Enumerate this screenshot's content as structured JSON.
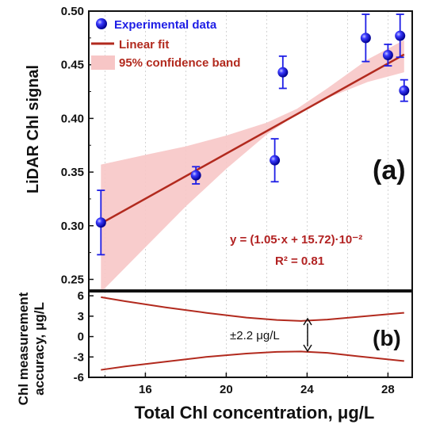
{
  "colors": {
    "data": "#1e1ee6",
    "fit": "#b22a1e",
    "band": "#f7c6c6",
    "grid": "#c8c8c8",
    "text": "#111111"
  },
  "chart_data": [
    {
      "type": "scatter",
      "panel_label": "(a)",
      "ylabel": "LiDAR Chl signal",
      "xlim": [
        13.2,
        29.2
      ],
      "ylim": [
        0.24,
        0.5
      ],
      "yticks": [
        0.25,
        0.3,
        0.35,
        0.4,
        0.45,
        0.5
      ],
      "ytick_labels": [
        "0.25",
        "0.30",
        "0.35",
        "0.40",
        "0.45",
        "0.50"
      ],
      "grid": "vertical dotted",
      "legend_position": "top-left",
      "legend": {
        "data_label": "Experimental data",
        "fit_label": "Linear fit",
        "band_label": "95% confidence band"
      },
      "series": [
        {
          "name": "Experimental data",
          "x": [
            13.8,
            18.5,
            22.4,
            22.8,
            26.9,
            28.0,
            28.6,
            28.8
          ],
          "y": [
            0.303,
            0.347,
            0.361,
            0.443,
            0.475,
            0.459,
            0.477,
            0.426
          ],
          "yerr": [
            0.03,
            0.008,
            0.02,
            0.015,
            0.022,
            0.01,
            0.02,
            0.01
          ]
        }
      ],
      "fit": {
        "name": "Linear fit",
        "slope": 0.0105,
        "intercept": 0.1572,
        "x_range": [
          13.8,
          28.8
        ],
        "equation": "y = (1.05·x + 15.72)·10⁻²",
        "r2": "R² = 0.81"
      },
      "confidence_band": {
        "name": "95% confidence band",
        "x": [
          13.8,
          16,
          18,
          20,
          22,
          23.5,
          25,
          27,
          28.8
        ],
        "lower": [
          0.238,
          0.28,
          0.318,
          0.353,
          0.385,
          0.404,
          0.419,
          0.434,
          0.443
        ],
        "upper": [
          0.357,
          0.366,
          0.374,
          0.384,
          0.396,
          0.409,
          0.428,
          0.455,
          0.473
        ]
      }
    },
    {
      "type": "line",
      "panel_label": "(b)",
      "ylabel_lines": [
        "Chl measurement",
        "accuracy, μg/L"
      ],
      "xlabel": "Total Chl concentration, μg/L",
      "xlim": [
        13.2,
        29.2
      ],
      "ylim": [
        -6,
        6.6
      ],
      "xticks": [
        16,
        20,
        24,
        28
      ],
      "xtick_labels": [
        "16",
        "20",
        "24",
        "28"
      ],
      "yticks": [
        -6,
        -3,
        0,
        3,
        6
      ],
      "ytick_labels": [
        "-6",
        "-3",
        "0",
        "3",
        "6"
      ],
      "series": [
        {
          "name": "upper bound",
          "x": [
            13.8,
            15,
            17,
            19,
            21,
            22.5,
            23.7,
            25,
            26.5,
            28.8
          ],
          "y": [
            5.8,
            5.2,
            4.3,
            3.5,
            2.8,
            2.45,
            2.3,
            2.5,
            2.9,
            3.5
          ]
        },
        {
          "name": "lower bound",
          "x": [
            13.8,
            15,
            17,
            19,
            21,
            22.5,
            23.7,
            25,
            26.5,
            28.8
          ],
          "y": [
            -4.9,
            -4.4,
            -3.7,
            -3.0,
            -2.5,
            -2.25,
            -2.2,
            -2.4,
            -2.9,
            -3.6
          ]
        }
      ],
      "annotation": {
        "text": "±2.2 μg/L",
        "x": 23.7
      }
    }
  ]
}
